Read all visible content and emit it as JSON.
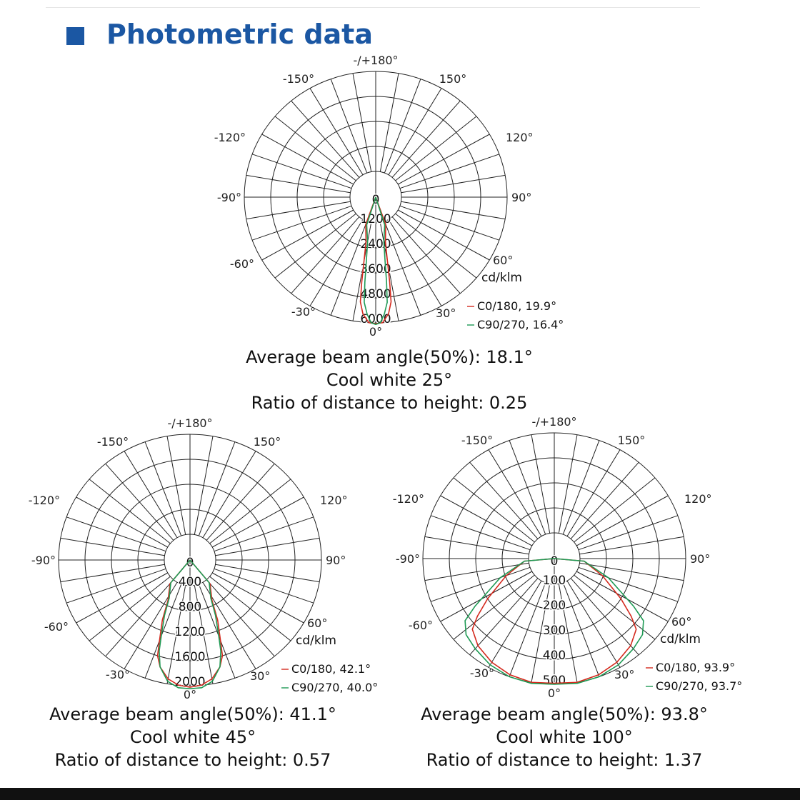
{
  "section": {
    "title": "Photometric data",
    "accent_color": "#1b57a3"
  },
  "chart_data": [
    {
      "type": "polar",
      "angle_labels": {
        "top": "-/+180°",
        "p150": "150°",
        "m150": "-150°",
        "p120": "120°",
        "m120": "-120°",
        "p90": "90°",
        "m90": "-90°",
        "p60": "60°",
        "m60": "-60°",
        "p30": "30°",
        "m30": "-30°",
        "zero": "0°"
      },
      "radial_ticks": [
        "0",
        "1200",
        "2400",
        "3600",
        "4800",
        "6000"
      ],
      "radial_max": 6000,
      "unit": "cd/klm",
      "series": [
        {
          "name": "C0/180",
          "beam_label": "C0/180, 19.9°",
          "color": "#d42a1e",
          "points": [
            [
              0,
              6050
            ],
            [
              3,
              6000
            ],
            [
              6,
              5500
            ],
            [
              8,
              4800
            ],
            [
              9,
              3600
            ],
            [
              10,
              2400
            ],
            [
              12,
              1200
            ],
            [
              20,
              200
            ],
            [
              40,
              0
            ]
          ]
        },
        {
          "name": "C90/270",
          "beam_label": "C90/270, 16.4°",
          "color": "#1f9a55",
          "points": [
            [
              0,
              6100
            ],
            [
              2,
              6000
            ],
            [
              4,
              5500
            ],
            [
              6,
              4800
            ],
            [
              7,
              3600
            ],
            [
              8,
              2400
            ],
            [
              10,
              1200
            ],
            [
              18,
              200
            ],
            [
              40,
              0
            ]
          ]
        }
      ],
      "annotation": [
        "Average beam angle(50%): 18.1°",
        "Cool white 25°",
        "Ratio of distance to height: 0.25"
      ]
    },
    {
      "type": "polar",
      "angle_labels": {
        "top": "-/+180°",
        "p150": "150°",
        "m150": "-150°",
        "p120": "120°",
        "m120": "-120°",
        "p90": "90°",
        "m90": "-90°",
        "p60": "60°",
        "m60": "-60°",
        "p30": "30°",
        "m30": "-30°",
        "zero": "0°"
      },
      "radial_ticks": [
        "0",
        "400",
        "800",
        "1200",
        "1600",
        "2000"
      ],
      "radial_max": 2000,
      "unit": "cd/klm",
      "series": [
        {
          "name": "C0/180",
          "beam_label": "C0/180, 42.1°",
          "color": "#d42a1e",
          "points": [
            [
              0,
              2030
            ],
            [
              5,
              2000
            ],
            [
              10,
              1900
            ],
            [
              15,
              1700
            ],
            [
              18,
              1500
            ],
            [
              20,
              1200
            ],
            [
              24,
              800
            ],
            [
              28,
              400
            ],
            [
              40,
              100
            ],
            [
              60,
              0
            ]
          ]
        },
        {
          "name": "C90/270",
          "beam_label": "C90/270, 40.0°",
          "color": "#1f9a55",
          "points": [
            [
              0,
              2060
            ],
            [
              5,
              2050
            ],
            [
              10,
              1950
            ],
            [
              15,
              1700
            ],
            [
              18,
              1400
            ],
            [
              20,
              1100
            ],
            [
              24,
              700
            ],
            [
              28,
              350
            ],
            [
              40,
              80
            ],
            [
              60,
              0
            ]
          ]
        }
      ],
      "annotation": [
        "Average beam angle(50%): 41.1°",
        "Cool white 45°",
        "Ratio of distance to height: 0.57"
      ]
    },
    {
      "type": "polar",
      "angle_labels": {
        "top": "-/+180°",
        "p150": "150°",
        "m150": "-150°",
        "p120": "120°",
        "m120": "-120°",
        "p90": "90°",
        "m90": "-90°",
        "p60": "60°",
        "m60": "-60°",
        "p30": "30°",
        "m30": "-30°",
        "zero": "0°"
      },
      "radial_ticks": [
        "0",
        "100",
        "200",
        "300",
        "400",
        "500"
      ],
      "radial_max": 500,
      "unit": "cd/klm",
      "series": [
        {
          "name": "C0/180",
          "beam_label": "C0/180, 93.9°",
          "color": "#d42a1e",
          "points": [
            [
              0,
              495
            ],
            [
              10,
              500
            ],
            [
              20,
              490
            ],
            [
              30,
              470
            ],
            [
              40,
              440
            ],
            [
              48,
              400
            ],
            [
              52,
              340
            ],
            [
              58,
              250
            ],
            [
              70,
              120
            ],
            [
              85,
              20
            ],
            [
              90,
              0
            ]
          ]
        },
        {
          "name": "C90/270",
          "beam_label": "C90/270, 93.7°",
          "color": "#1f9a55",
          "points": [
            [
              0,
              500
            ],
            [
              10,
              505
            ],
            [
              20,
              500
            ],
            [
              30,
              485
            ],
            [
              40,
              460
            ],
            [
              48,
              440
            ],
            [
              54,
              400
            ],
            [
              58,
              320
            ],
            [
              70,
              150
            ],
            [
              85,
              20
            ],
            [
              90,
              0
            ]
          ]
        }
      ],
      "annotation": [
        "Average beam angle(50%): 93.8°",
        "Cool white 100°",
        "Ratio of distance to height: 1.37"
      ]
    }
  ]
}
